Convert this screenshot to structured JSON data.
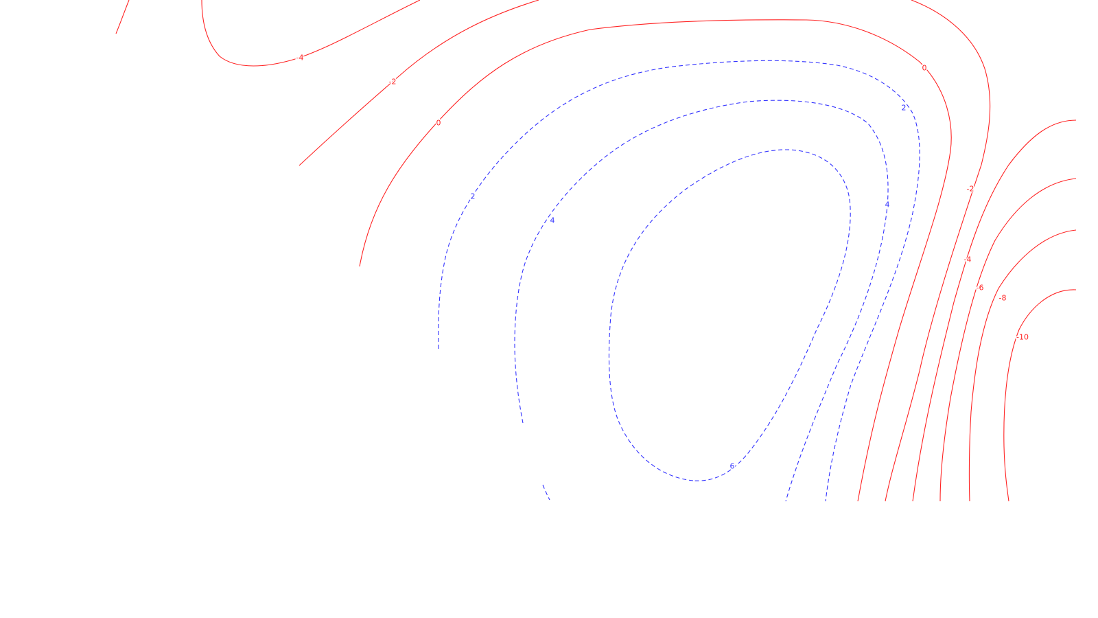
{
  "chart_data": {
    "type": "contour",
    "title": "",
    "xlabel": "",
    "ylabel": "",
    "positive_color": "#3333ff",
    "negative_color": "#ff2222",
    "positive_style": "dashed",
    "negative_style": "solid",
    "levels": [
      {
        "value": -10,
        "label": "-10",
        "sign": "negative"
      },
      {
        "value": -8,
        "label": "-8",
        "sign": "negative"
      },
      {
        "value": -6,
        "label": "-6",
        "sign": "negative"
      },
      {
        "value": -4,
        "label": "-4",
        "sign": "negative"
      },
      {
        "value": -2,
        "label": "-2",
        "sign": "negative"
      },
      {
        "value": 0,
        "label": "0",
        "sign": "negative"
      },
      {
        "value": 2,
        "label": "2",
        "sign": "positive"
      },
      {
        "value": 4,
        "label": "4",
        "sign": "positive"
      },
      {
        "value": 6,
        "label": "6",
        "sign": "positive"
      }
    ]
  }
}
